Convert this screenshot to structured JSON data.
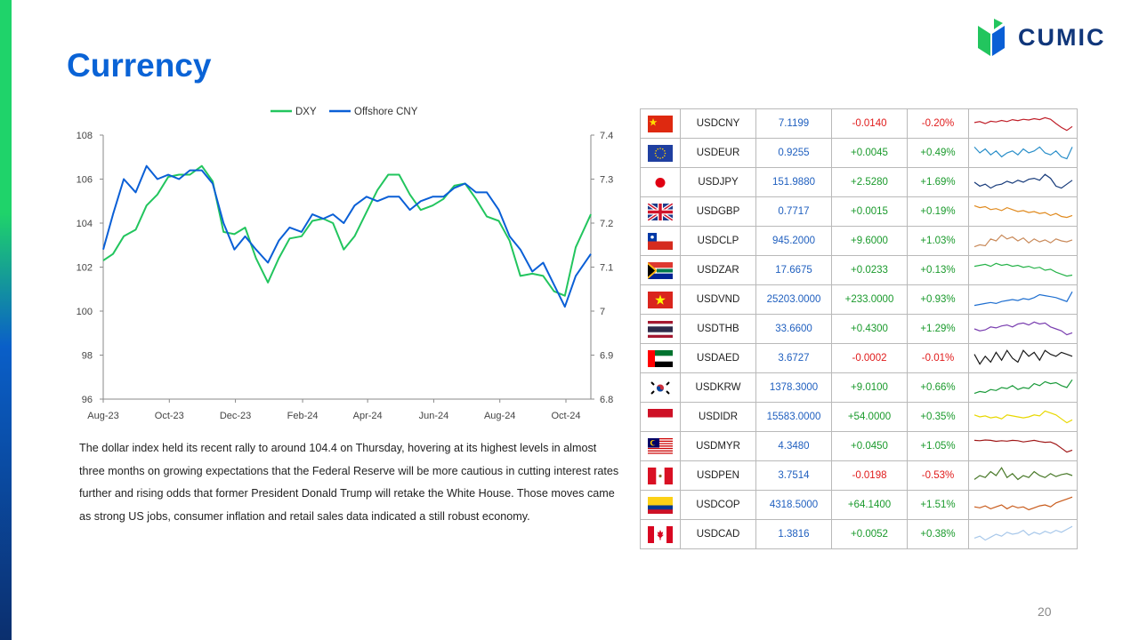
{
  "title": "Currency",
  "logo": {
    "text": "CUMIC",
    "icon": "cumic-leaf-logo"
  },
  "page_number": "20",
  "commentary": "The dollar index held its recent rally to around 104.4 on Thursday, hovering at its highest levels in almost three months on growing expectations that the Federal Reserve will be more cautious in cutting interest rates further and rising odds that former President Donald Trump will retake the White House. Those moves came as strong US jobs, consumer inflation and retail sales data indicated a still robust economy.",
  "colors": {
    "dxy": "#22c55e",
    "cny": "#0a5fd6",
    "positive": "#1a9a2c",
    "negative": "#e01b1b",
    "value": "#1f5fbf"
  },
  "chart_data": {
    "type": "line",
    "title": "",
    "x_tick_labels": [
      "Aug-23",
      "Oct-23",
      "Dec-23",
      "Feb-24",
      "Apr-24",
      "Jun-24",
      "Aug-24",
      "Oct-24"
    ],
    "x_tick_dates": [
      "2023-08-01",
      "2023-10-01",
      "2023-12-01",
      "2024-02-01",
      "2024-04-01",
      "2024-06-01",
      "2024-08-01",
      "2024-10-01"
    ],
    "xlim": [
      "2023-08-01",
      "2024-10-24"
    ],
    "legend_position": "top",
    "grid": false,
    "series": [
      {
        "name": "DXY",
        "axis": "left",
        "color": "#22c55e",
        "points": [
          [
            "2023-08-01",
            102.3
          ],
          [
            "2023-08-10",
            102.6
          ],
          [
            "2023-08-20",
            103.4
          ],
          [
            "2023-08-31",
            103.7
          ],
          [
            "2023-09-10",
            104.8
          ],
          [
            "2023-09-20",
            105.3
          ],
          [
            "2023-09-30",
            106.1
          ],
          [
            "2023-10-10",
            106.2
          ],
          [
            "2023-10-20",
            106.2
          ],
          [
            "2023-10-31",
            106.6
          ],
          [
            "2023-11-10",
            105.9
          ],
          [
            "2023-11-20",
            103.6
          ],
          [
            "2023-11-30",
            103.5
          ],
          [
            "2023-12-10",
            103.8
          ],
          [
            "2023-12-20",
            102.4
          ],
          [
            "2023-12-31",
            101.3
          ],
          [
            "2024-01-10",
            102.4
          ],
          [
            "2024-01-20",
            103.3
          ],
          [
            "2024-01-31",
            103.4
          ],
          [
            "2024-02-10",
            104.1
          ],
          [
            "2024-02-20",
            104.2
          ],
          [
            "2024-02-29",
            104.0
          ],
          [
            "2024-03-10",
            102.8
          ],
          [
            "2024-03-20",
            103.4
          ],
          [
            "2024-03-31",
            104.5
          ],
          [
            "2024-04-10",
            105.5
          ],
          [
            "2024-04-20",
            106.2
          ],
          [
            "2024-04-30",
            106.2
          ],
          [
            "2024-05-10",
            105.3
          ],
          [
            "2024-05-20",
            104.6
          ],
          [
            "2024-05-31",
            104.8
          ],
          [
            "2024-06-10",
            105.1
          ],
          [
            "2024-06-20",
            105.7
          ],
          [
            "2024-06-30",
            105.8
          ],
          [
            "2024-07-10",
            105.1
          ],
          [
            "2024-07-20",
            104.3
          ],
          [
            "2024-07-31",
            104.1
          ],
          [
            "2024-08-10",
            103.2
          ],
          [
            "2024-08-20",
            101.6
          ],
          [
            "2024-08-31",
            101.7
          ],
          [
            "2024-09-10",
            101.6
          ],
          [
            "2024-09-20",
            100.9
          ],
          [
            "2024-09-30",
            100.7
          ],
          [
            "2024-10-10",
            102.9
          ],
          [
            "2024-10-24",
            104.4
          ]
        ]
      },
      {
        "name": "Offshore CNY",
        "axis": "right",
        "color": "#0a5fd6",
        "points": [
          [
            "2023-08-01",
            7.14
          ],
          [
            "2023-08-10",
            7.22
          ],
          [
            "2023-08-20",
            7.3
          ],
          [
            "2023-08-31",
            7.27
          ],
          [
            "2023-09-10",
            7.33
          ],
          [
            "2023-09-20",
            7.3
          ],
          [
            "2023-09-30",
            7.31
          ],
          [
            "2023-10-10",
            7.3
          ],
          [
            "2023-10-20",
            7.32
          ],
          [
            "2023-10-31",
            7.32
          ],
          [
            "2023-11-10",
            7.29
          ],
          [
            "2023-11-20",
            7.2
          ],
          [
            "2023-11-30",
            7.14
          ],
          [
            "2023-12-10",
            7.17
          ],
          [
            "2023-12-20",
            7.14
          ],
          [
            "2023-12-31",
            7.11
          ],
          [
            "2024-01-10",
            7.16
          ],
          [
            "2024-01-20",
            7.19
          ],
          [
            "2024-01-31",
            7.18
          ],
          [
            "2024-02-10",
            7.22
          ],
          [
            "2024-02-20",
            7.21
          ],
          [
            "2024-02-29",
            7.22
          ],
          [
            "2024-03-10",
            7.2
          ],
          [
            "2024-03-20",
            7.24
          ],
          [
            "2024-03-31",
            7.26
          ],
          [
            "2024-04-10",
            7.25
          ],
          [
            "2024-04-20",
            7.26
          ],
          [
            "2024-04-30",
            7.26
          ],
          [
            "2024-05-10",
            7.23
          ],
          [
            "2024-05-20",
            7.25
          ],
          [
            "2024-05-31",
            7.26
          ],
          [
            "2024-06-10",
            7.26
          ],
          [
            "2024-06-20",
            7.28
          ],
          [
            "2024-06-30",
            7.29
          ],
          [
            "2024-07-10",
            7.27
          ],
          [
            "2024-07-20",
            7.27
          ],
          [
            "2024-07-31",
            7.23
          ],
          [
            "2024-08-10",
            7.17
          ],
          [
            "2024-08-20",
            7.14
          ],
          [
            "2024-08-31",
            7.09
          ],
          [
            "2024-09-10",
            7.11
          ],
          [
            "2024-09-20",
            7.06
          ],
          [
            "2024-09-30",
            7.01
          ],
          [
            "2024-10-10",
            7.08
          ],
          [
            "2024-10-24",
            7.13
          ]
        ]
      }
    ],
    "y_left": {
      "ylim": [
        96,
        108
      ],
      "ticks": [
        "96",
        "98",
        "100",
        "102",
        "104",
        "106",
        "108"
      ]
    },
    "y_right": {
      "ylim": [
        6.8,
        7.4
      ],
      "ticks": [
        "6.8",
        "6.9",
        "7",
        "7.1",
        "7.2",
        "7.3",
        "7.4"
      ]
    }
  },
  "fx_table": [
    {
      "flag": "cn-flag",
      "pair": "USDCNY",
      "rate": "7.1199",
      "change": "-0.0140",
      "pct": "-0.20%",
      "dir": "neg",
      "spark_color": "#c0202a",
      "spark": [
        0.55,
        0.6,
        0.5,
        0.62,
        0.58,
        0.66,
        0.6,
        0.7,
        0.65,
        0.72,
        0.68,
        0.75,
        0.7,
        0.8,
        0.72,
        0.5,
        0.3,
        0.15,
        0.35
      ]
    },
    {
      "flag": "eu-flag",
      "pair": "USDEUR",
      "rate": "0.9255",
      "change": "+0.0045",
      "pct": "+0.49%",
      "dir": "pos",
      "spark_color": "#2a8fc9",
      "spark": [
        0.8,
        0.5,
        0.7,
        0.4,
        0.6,
        0.3,
        0.5,
        0.6,
        0.4,
        0.7,
        0.5,
        0.6,
        0.8,
        0.5,
        0.4,
        0.6,
        0.3,
        0.2,
        0.8
      ]
    },
    {
      "flag": "jp-flag",
      "pair": "USDJPY",
      "rate": "151.9880",
      "change": "+2.5280",
      "pct": "+1.69%",
      "dir": "pos",
      "spark_color": "#163a7a",
      "spark": [
        0.5,
        0.3,
        0.4,
        0.2,
        0.35,
        0.4,
        0.55,
        0.45,
        0.6,
        0.5,
        0.65,
        0.7,
        0.6,
        0.9,
        0.7,
        0.3,
        0.2,
        0.4,
        0.6
      ]
    },
    {
      "flag": "gb-flag",
      "pair": "USDGBP",
      "rate": "0.7717",
      "change": "+0.0015",
      "pct": "+0.19%",
      "dir": "pos",
      "spark_color": "#e08a1e",
      "spark": [
        0.8,
        0.7,
        0.75,
        0.6,
        0.65,
        0.55,
        0.7,
        0.6,
        0.5,
        0.55,
        0.45,
        0.5,
        0.4,
        0.45,
        0.3,
        0.4,
        0.25,
        0.2,
        0.3
      ]
    },
    {
      "flag": "cl-flag",
      "pair": "USDCLP",
      "rate": "945.2000",
      "change": "+9.6000",
      "pct": "+1.03%",
      "dir": "pos",
      "spark_color": "#c98a5a",
      "spark": [
        0.2,
        0.3,
        0.25,
        0.6,
        0.5,
        0.8,
        0.6,
        0.7,
        0.5,
        0.65,
        0.4,
        0.6,
        0.45,
        0.55,
        0.4,
        0.6,
        0.5,
        0.45,
        0.55
      ]
    },
    {
      "flag": "za-flag",
      "pair": "USDZAR",
      "rate": "17.6675",
      "change": "+0.0233",
      "pct": "+0.13%",
      "dir": "pos",
      "spark_color": "#27b34a",
      "spark": [
        0.7,
        0.75,
        0.8,
        0.7,
        0.85,
        0.75,
        0.8,
        0.7,
        0.75,
        0.65,
        0.7,
        0.6,
        0.65,
        0.5,
        0.55,
        0.4,
        0.3,
        0.2,
        0.25
      ]
    },
    {
      "flag": "vn-flag",
      "pair": "USDVND",
      "rate": "25203.0000",
      "change": "+233.0000",
      "pct": "+0.93%",
      "dir": "pos",
      "spark_color": "#1f6fd0",
      "spark": [
        0.2,
        0.25,
        0.3,
        0.35,
        0.3,
        0.4,
        0.45,
        0.5,
        0.45,
        0.55,
        0.5,
        0.6,
        0.75,
        0.7,
        0.65,
        0.6,
        0.5,
        0.4,
        0.9
      ]
    },
    {
      "flag": "th-flag",
      "pair": "USDTHB",
      "rate": "33.6600",
      "change": "+0.4300",
      "pct": "+1.29%",
      "dir": "pos",
      "spark_color": "#7a3fb0",
      "spark": [
        0.5,
        0.4,
        0.45,
        0.6,
        0.55,
        0.65,
        0.7,
        0.6,
        0.75,
        0.8,
        0.7,
        0.85,
        0.75,
        0.8,
        0.6,
        0.5,
        0.4,
        0.2,
        0.3
      ]
    },
    {
      "flag": "ae-flag",
      "pair": "USDAED",
      "rate": "3.6727",
      "change": "-0.0002",
      "pct": "-0.01%",
      "dir": "neg",
      "spark_color": "#1a1a1a",
      "spark": [
        0.7,
        0.2,
        0.6,
        0.3,
        0.8,
        0.4,
        0.9,
        0.5,
        0.3,
        0.9,
        0.6,
        0.8,
        0.4,
        0.9,
        0.7,
        0.6,
        0.8,
        0.7,
        0.6
      ]
    },
    {
      "flag": "kr-flag",
      "pair": "USDKRW",
      "rate": "1378.3000",
      "change": "+9.0100",
      "pct": "+0.66%",
      "dir": "pos",
      "spark_color": "#1a9a3a",
      "spark": [
        0.2,
        0.3,
        0.25,
        0.4,
        0.35,
        0.5,
        0.45,
        0.6,
        0.4,
        0.5,
        0.45,
        0.7,
        0.6,
        0.8,
        0.7,
        0.75,
        0.6,
        0.5,
        0.9
      ]
    },
    {
      "flag": "id-flag",
      "pair": "USDIDR",
      "rate": "15583.0000",
      "change": "+54.0000",
      "pct": "+0.35%",
      "dir": "pos",
      "spark_color": "#e8d800",
      "spark": [
        0.6,
        0.5,
        0.55,
        0.45,
        0.5,
        0.4,
        0.6,
        0.55,
        0.5,
        0.45,
        0.5,
        0.6,
        0.55,
        0.8,
        0.7,
        0.6,
        0.4,
        0.2,
        0.35
      ]
    },
    {
      "flag": "my-flag",
      "pair": "USDMYR",
      "rate": "4.3480",
      "change": "+0.0450",
      "pct": "+1.05%",
      "dir": "pos",
      "spark_color": "#a01818",
      "spark": [
        0.8,
        0.78,
        0.82,
        0.8,
        0.75,
        0.78,
        0.76,
        0.8,
        0.78,
        0.72,
        0.76,
        0.8,
        0.74,
        0.7,
        0.72,
        0.6,
        0.4,
        0.2,
        0.3
      ]
    },
    {
      "flag": "pe-flag",
      "pair": "USDPEN",
      "rate": "3.7514",
      "change": "-0.0198",
      "pct": "-0.53%",
      "dir": "neg",
      "spark_color": "#4a7a2a",
      "spark": [
        0.3,
        0.5,
        0.4,
        0.7,
        0.5,
        0.9,
        0.4,
        0.6,
        0.3,
        0.5,
        0.4,
        0.7,
        0.5,
        0.4,
        0.6,
        0.45,
        0.55,
        0.6,
        0.5
      ]
    },
    {
      "flag": "co-flag",
      "pair": "USDCOP",
      "rate": "4318.5000",
      "change": "+64.1400",
      "pct": "+1.51%",
      "dir": "pos",
      "spark_color": "#c85a1a",
      "spark": [
        0.4,
        0.35,
        0.45,
        0.3,
        0.4,
        0.5,
        0.3,
        0.45,
        0.35,
        0.4,
        0.25,
        0.35,
        0.45,
        0.5,
        0.4,
        0.6,
        0.7,
        0.8,
        0.9
      ]
    },
    {
      "flag": "ca-flag",
      "pair": "USDCAD",
      "rate": "1.3816",
      "change": "+0.0052",
      "pct": "+0.38%",
      "dir": "pos",
      "spark_color": "#a8c8ea",
      "spark": [
        0.3,
        0.4,
        0.2,
        0.35,
        0.5,
        0.4,
        0.6,
        0.5,
        0.55,
        0.7,
        0.45,
        0.6,
        0.5,
        0.65,
        0.55,
        0.7,
        0.6,
        0.75,
        0.9
      ]
    }
  ]
}
